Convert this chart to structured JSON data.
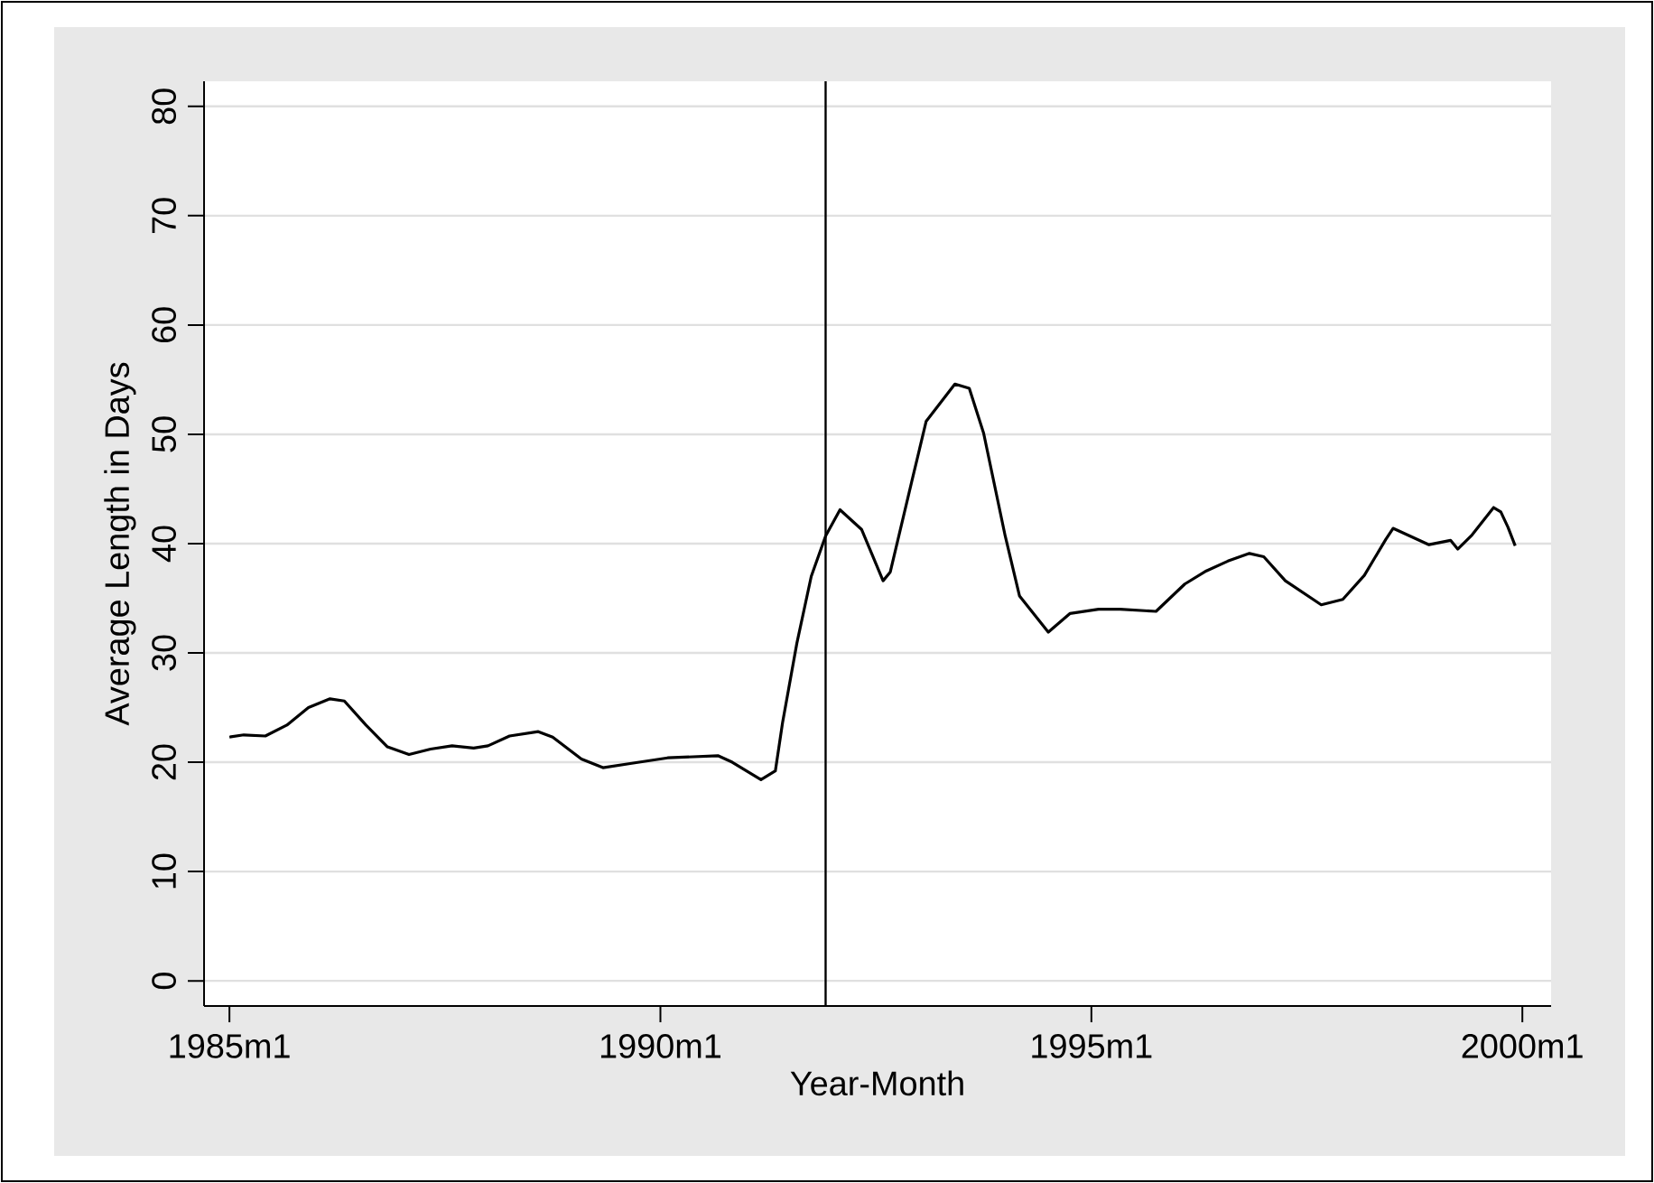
{
  "chart_data": {
    "type": "line",
    "xlabel": "Year-Month",
    "ylabel": "Average Length in Days",
    "x": [
      "1985-01",
      "1985-03",
      "1985-06",
      "1985-09",
      "1985-12",
      "1986-03",
      "1986-05",
      "1986-08",
      "1986-11",
      "1987-02",
      "1987-05",
      "1987-08",
      "1987-11",
      "1988-01",
      "1988-04",
      "1988-08",
      "1988-10",
      "1989-02",
      "1989-05",
      "1989-09",
      "1990-02",
      "1990-09",
      "1990-11",
      "1991-03",
      "1991-05",
      "1991-06",
      "1991-08",
      "1991-10",
      "1991-12",
      "1992-02",
      "1992-05",
      "1992-08",
      "1992-09",
      "1992-12",
      "1993-02",
      "1993-06",
      "1993-08",
      "1993-10",
      "1994-01",
      "1994-03",
      "1994-07",
      "1994-10",
      "1995-02",
      "1995-05",
      "1995-10",
      "1996-02",
      "1996-05",
      "1996-08",
      "1996-11",
      "1997-01",
      "1997-04",
      "1997-09",
      "1997-12",
      "1998-03",
      "1998-06",
      "1998-07",
      "1998-12",
      "1999-03",
      "1999-04",
      "1999-06",
      "1999-09",
      "1999-10",
      "1999-11",
      "1999-12"
    ],
    "values": [
      22.3,
      22.5,
      22.4,
      23.4,
      25.0,
      25.8,
      25.6,
      23.4,
      21.4,
      20.7,
      21.2,
      21.5,
      21.3,
      21.5,
      22.4,
      22.8,
      22.3,
      20.3,
      19.5,
      19.9,
      20.4,
      20.6,
      20.0,
      18.4,
      19.2,
      23.6,
      30.9,
      37.0,
      40.7,
      43.1,
      41.3,
      36.6,
      37.4,
      45.7,
      51.2,
      54.6,
      54.2,
      50.1,
      40.7,
      35.2,
      31.9,
      33.6,
      34.0,
      34.0,
      33.8,
      36.3,
      37.5,
      38.4,
      39.1,
      38.8,
      36.6,
      34.4,
      34.9,
      37.1,
      40.4,
      41.4,
      39.9,
      40.3,
      39.5,
      40.8,
      43.3,
      42.9,
      41.5,
      39.8
    ],
    "color": "#000000",
    "xlim": [
      "1984-09-15",
      "2000-05"
    ],
    "xticks": [
      {
        "value": "1985-01",
        "label": "1985m1"
      },
      {
        "value": "1990-01",
        "label": "1990m1"
      },
      {
        "value": "1995-01",
        "label": "1995m1"
      },
      {
        "value": "2000-01",
        "label": "2000m1"
      }
    ],
    "ylim": [
      -2.3,
      82.3
    ],
    "yticks": [
      0,
      10,
      20,
      30,
      40,
      50,
      60,
      70,
      80
    ],
    "grid": "y",
    "ref_lines": [
      {
        "axis": "x",
        "value": "1991-12",
        "color": "#000000"
      }
    ]
  }
}
